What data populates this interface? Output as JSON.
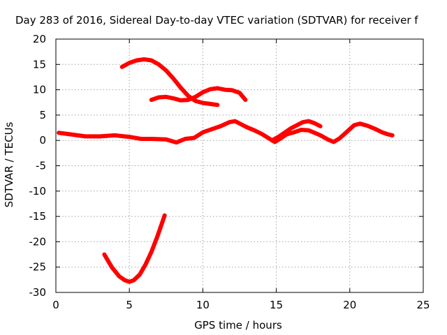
{
  "chart_data": {
    "type": "line",
    "title": "Day 283 of 2016, Sidereal Day-to-day VTEC variation (SDTVAR) for receiver f",
    "xlabel": "GPS time / hours",
    "ylabel": "SDTVAR / TECUs",
    "xlim": [
      0,
      25
    ],
    "ylim": [
      -30,
      20
    ],
    "xticks": [
      0,
      5,
      10,
      15,
      20,
      25
    ],
    "yticks": [
      -30,
      -25,
      -20,
      -15,
      -10,
      -5,
      0,
      5,
      10,
      15,
      20
    ],
    "grid": true,
    "color": "#ff0000",
    "series": [
      {
        "x": [
          0.2,
          1.0,
          2.0,
          3.0,
          4.0,
          5.0,
          5.8,
          6.5,
          7.5,
          8.2,
          8.8,
          9.4,
          10.0,
          10.6,
          11.2,
          11.8,
          12.2,
          12.6,
          13.0,
          13.5,
          14.0,
          14.5,
          14.9,
          15.3,
          15.7,
          16.2,
          16.7,
          17.2,
          17.6,
          18.0,
          18.5,
          18.9,
          19.3,
          19.8,
          20.3,
          20.7,
          21.2,
          21.7,
          22.2,
          22.6,
          22.9
        ],
        "y": [
          1.5,
          1.2,
          0.8,
          0.8,
          1.0,
          0.7,
          0.3,
          0.3,
          0.2,
          -0.4,
          0.3,
          0.5,
          1.6,
          2.2,
          2.8,
          3.6,
          3.8,
          3.2,
          2.6,
          2.0,
          1.3,
          0.4,
          -0.3,
          0.4,
          1.2,
          1.6,
          2.1,
          2.0,
          1.5,
          1.0,
          0.2,
          -0.3,
          0.4,
          1.7,
          3.0,
          3.3,
          2.9,
          2.3,
          1.6,
          1.2,
          1.0
        ]
      },
      {
        "x": [
          14.7,
          15.2,
          15.6,
          16.0,
          16.4,
          16.8,
          17.2,
          17.6,
          18.0
        ],
        "y": [
          0.0,
          0.8,
          1.6,
          2.4,
          3.0,
          3.6,
          3.8,
          3.4,
          2.8
        ]
      },
      {
        "x": [
          4.5,
          5.0,
          5.5,
          6.0,
          6.5,
          7.0,
          7.5,
          8.0,
          8.5,
          9.0,
          9.5,
          10.0,
          10.5,
          11.0
        ],
        "y": [
          14.5,
          15.3,
          15.8,
          16.0,
          15.8,
          15.0,
          13.8,
          12.2,
          10.4,
          8.8,
          7.8,
          7.4,
          7.2,
          7.0
        ]
      },
      {
        "x": [
          6.5,
          7.0,
          7.5,
          8.0,
          8.5,
          9.0,
          9.5,
          10.0,
          10.5,
          11.0,
          11.5,
          12.0,
          12.5,
          12.9
        ],
        "y": [
          8.0,
          8.5,
          8.6,
          8.3,
          7.9,
          8.0,
          8.6,
          9.5,
          10.1,
          10.3,
          10.0,
          9.9,
          9.4,
          8.0
        ]
      },
      {
        "x": [
          3.3,
          3.8,
          4.3,
          4.7,
          5.0,
          5.3,
          5.7,
          6.1,
          6.5,
          6.9,
          7.2,
          7.4
        ],
        "y": [
          -22.5,
          -25.0,
          -26.8,
          -27.6,
          -27.9,
          -27.6,
          -26.5,
          -24.5,
          -22.0,
          -19.0,
          -16.5,
          -14.8
        ]
      }
    ]
  }
}
